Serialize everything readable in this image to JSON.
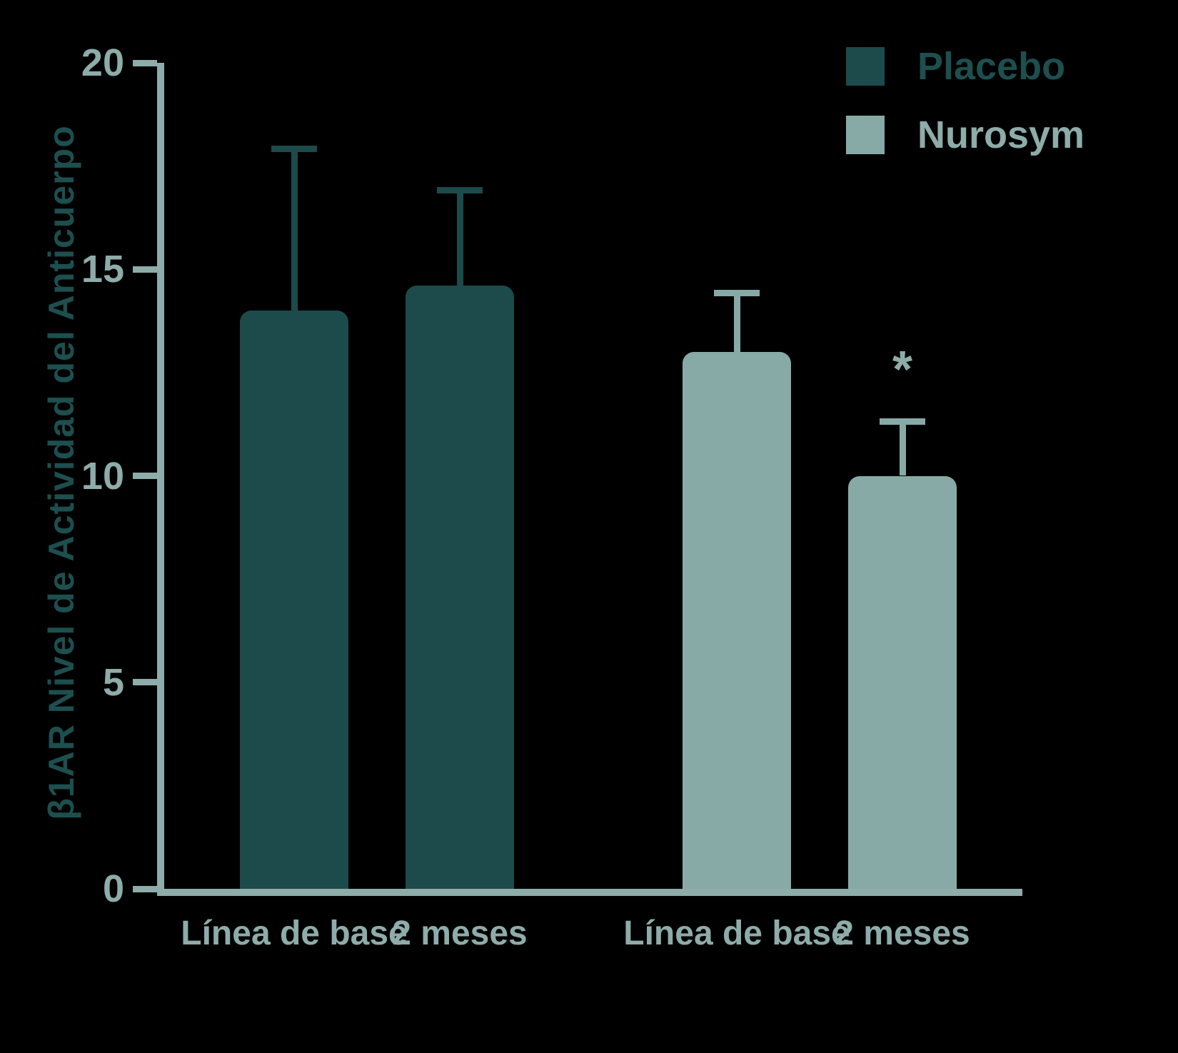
{
  "chart_data": {
    "type": "bar",
    "title": "",
    "ylabel": "β1AR Nivel de Actividad del Anticuerpo",
    "xlabel": "",
    "ylim": [
      0,
      20
    ],
    "yticks": [
      0,
      5,
      10,
      15,
      20
    ],
    "grid": false,
    "legend_position": "top-right",
    "background": "#000000",
    "axis_color": "#8eaca9",
    "tick_label_color": "#8eaca9",
    "xlabel_color": "#8eaca9",
    "ylabel_color": "#1d4f4f",
    "annotation_color": "#8eaca9",
    "groups": [
      {
        "series": "Placebo",
        "color": "#1d4a4a",
        "bars": [
          {
            "label": "Línea de base",
            "value": 14.0,
            "error_high": 18.0
          },
          {
            "label": "2 meses",
            "value": 14.6,
            "error_high": 17.0
          }
        ]
      },
      {
        "series": "Nurosym",
        "color": "#88aaa7",
        "bars": [
          {
            "label": "Línea de base",
            "value": 13.0,
            "error_high": 14.5
          },
          {
            "label": "2 meses",
            "value": 10.0,
            "error_high": 11.4,
            "annotation": "*"
          }
        ]
      }
    ],
    "legend": [
      {
        "label": "Placebo",
        "color": "#1d4a4a",
        "text_color": "#1d4f4f"
      },
      {
        "label": "Nurosym",
        "color": "#88aaa7",
        "text_color": "#8eaca9"
      }
    ]
  }
}
